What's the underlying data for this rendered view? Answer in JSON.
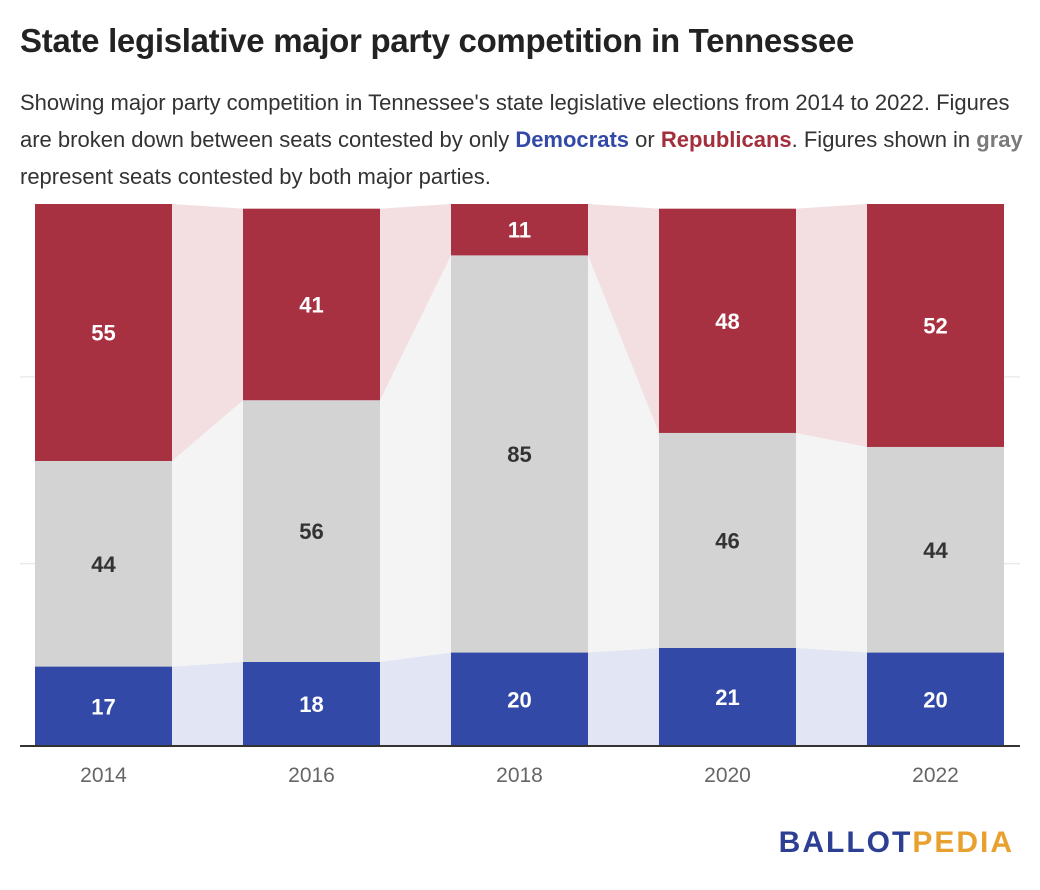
{
  "title": "State legislative major party competition in Tennessee",
  "subtitle": {
    "part1": "Showing major party competition in Tennessee's state legislative elections from 2014 to 2022. Figures are broken down between seats contested by only ",
    "democrats": "Democrats",
    "or": " or ",
    "republicans": "Republicans",
    "part2": ". Figures shown in ",
    "gray": "gray",
    "part3": " represent seats contested by both major parties."
  },
  "colors": {
    "democrat": "#3349a8",
    "republican": "#a73140",
    "both": "#d3d3d3",
    "democrat_link": "#e2e5f3",
    "republican_link": "#f3dfe1",
    "both_link": "#f4f4f4",
    "label_light": "#ffffff",
    "label_dark": "#333333",
    "axis": "#333333",
    "gridline": "#e2e2e2",
    "tick": "#666666"
  },
  "logo": {
    "part1": "BALLOT",
    "part2": "PEDIA"
  },
  "chart_data": {
    "type": "bar",
    "stacked": true,
    "categories": [
      "2014",
      "2016",
      "2018",
      "2020",
      "2022"
    ],
    "series": [
      {
        "name": "Democrats",
        "color": "#3349a8",
        "values": [
          17,
          18,
          20,
          21,
          20
        ]
      },
      {
        "name": "",
        "color": "#d3d3d3",
        "values": [
          44,
          56,
          85,
          46,
          44
        ]
      },
      {
        "name": "Republicans",
        "color": "#a73140",
        "values": [
          55,
          41,
          11,
          48,
          52
        ]
      }
    ],
    "ylim": [
      0,
      116
    ],
    "grid": true,
    "xlabel": "",
    "ylabel": ""
  }
}
